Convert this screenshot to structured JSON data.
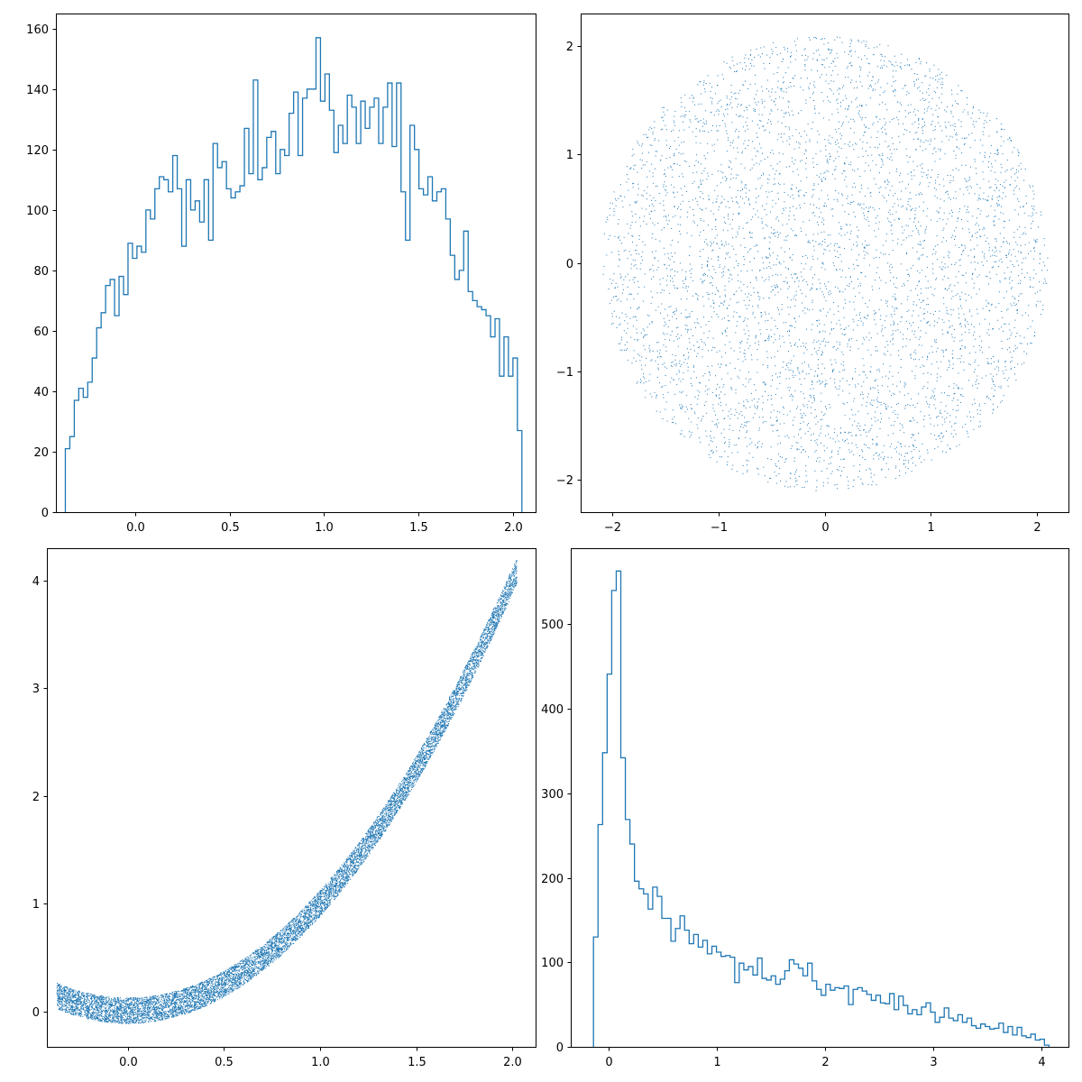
{
  "colors": {
    "series": "#1f77b4",
    "axis": "#000000",
    "background": "#ffffff"
  },
  "chart_data": [
    {
      "type": "histogram",
      "panel": "top-left",
      "xlim": [
        -0.42,
        2.12
      ],
      "ylim": [
        0,
        165
      ],
      "xticks": [
        0.0,
        0.5,
        1.0,
        1.5,
        2.0
      ],
      "xtick_labels": [
        "0.0",
        "0.5",
        "1.0",
        "1.5",
        "2.0"
      ],
      "yticks": [
        0,
        20,
        40,
        60,
        80,
        100,
        120,
        140,
        160
      ],
      "ytick_labels": [
        "0",
        "20",
        "40",
        "60",
        "80",
        "100",
        "120",
        "140",
        "160"
      ],
      "bin_start": -0.37,
      "bin_width": 0.0237,
      "counts": [
        21,
        25,
        37,
        41,
        38,
        43,
        51,
        61,
        66,
        75,
        77,
        65,
        78,
        72,
        89,
        84,
        88,
        86,
        100,
        97,
        107,
        111,
        110,
        106,
        118,
        107,
        88,
        110,
        100,
        103,
        96,
        110,
        90,
        122,
        114,
        116,
        107,
        104,
        106,
        108,
        127,
        112,
        143,
        110,
        114,
        124,
        126,
        112,
        120,
        118,
        132,
        139,
        118,
        137,
        140,
        140,
        157,
        136,
        145,
        133,
        119,
        128,
        122,
        138,
        134,
        122,
        136,
        127,
        134,
        137,
        122,
        134,
        142,
        121,
        142,
        106,
        90,
        128,
        120,
        107,
        105,
        111,
        103,
        106,
        107,
        97,
        85,
        77,
        80,
        93,
        73,
        70,
        68,
        67,
        65,
        58,
        64,
        45,
        58,
        45,
        51,
        27
      ]
    },
    {
      "type": "scatter",
      "panel": "top-right",
      "xlim": [
        -2.3,
        2.3
      ],
      "ylim": [
        -2.3,
        2.3
      ],
      "xticks": [
        -2,
        -1,
        0,
        1,
        2
      ],
      "xtick_labels": [
        "−2",
        "−1",
        "0",
        "1",
        "2"
      ],
      "yticks": [
        -2,
        -1,
        0,
        1,
        2
      ],
      "ytick_labels": [
        "−2",
        "−1",
        "0",
        "1",
        "2"
      ],
      "distribution": "uniform in disk",
      "radius": 2.1,
      "n_points": 5000
    },
    {
      "type": "scatter",
      "panel": "bottom-left",
      "xlim": [
        -0.42,
        2.12
      ],
      "ylim": [
        -0.33,
        4.3
      ],
      "xticks": [
        0.0,
        0.5,
        1.0,
        1.5,
        2.0
      ],
      "xtick_labels": [
        "0.0",
        "0.5",
        "1.0",
        "1.5",
        "2.0"
      ],
      "yticks": [
        0,
        1,
        2,
        3,
        4
      ],
      "ytick_labels": [
        "0",
        "1",
        "2",
        "3",
        "4"
      ],
      "relation": "y = x^2 + small band offset",
      "x_range": [
        -0.37,
        2.02
      ],
      "n_points": 10000
    },
    {
      "type": "histogram",
      "panel": "bottom-right",
      "xlim": [
        -0.35,
        4.25
      ],
      "ylim": [
        0,
        590
      ],
      "xticks": [
        0,
        1,
        2,
        3,
        4
      ],
      "xtick_labels": [
        "0",
        "1",
        "2",
        "3",
        "4"
      ],
      "yticks": [
        0,
        100,
        200,
        300,
        400,
        500
      ],
      "ytick_labels": [
        "0",
        "100",
        "200",
        "300",
        "400",
        "500"
      ],
      "bin_start": -0.14,
      "bin_width": 0.0421,
      "counts": [
        130,
        263,
        348,
        441,
        540,
        563,
        342,
        269,
        240,
        196,
        187,
        181,
        163,
        189,
        178,
        152,
        152,
        125,
        140,
        155,
        138,
        122,
        133,
        118,
        126,
        110,
        119,
        112,
        107,
        108,
        106,
        76,
        99,
        91,
        95,
        85,
        105,
        81,
        79,
        84,
        74,
        80,
        90,
        103,
        98,
        93,
        84,
        99,
        78,
        68,
        61,
        74,
        67,
        70,
        69,
        72,
        50,
        68,
        70,
        66,
        62,
        55,
        61,
        52,
        51,
        63,
        44,
        60,
        49,
        39,
        44,
        38,
        47,
        52,
        41,
        29,
        35,
        46,
        34,
        31,
        38,
        29,
        34,
        25,
        22,
        27,
        24,
        21,
        22,
        28,
        17,
        24,
        14,
        23,
        13,
        11,
        15,
        8,
        9,
        2
      ]
    }
  ]
}
